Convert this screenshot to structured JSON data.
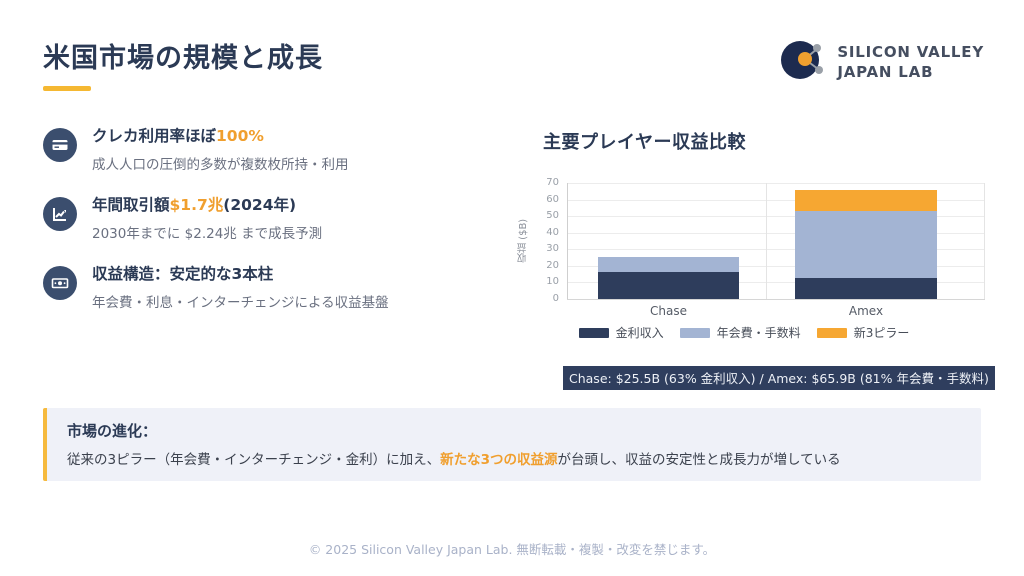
{
  "slide": {
    "title": "米国市場の規模と成長",
    "footer": "© 2025 Silicon Valley Japan Lab. 無断転載・複製・改変を禁じます。"
  },
  "logo": {
    "line1": "SILICON VALLEY",
    "line2": "JAPAN LAB"
  },
  "features": [
    {
      "icon": "credit-card-icon",
      "title_pre": "クレカ利用率ほぼ",
      "title_highlight": "100%",
      "title_post": "",
      "subtitle": "成人人口の圧倒的多数が複数枚所持・利用"
    },
    {
      "icon": "trend-chart-icon",
      "title_pre": "年間取引額",
      "title_highlight": "$1.7兆",
      "title_post": "(2024年)",
      "subtitle": "2030年までに $2.24兆 まで成長予測"
    },
    {
      "icon": "money-bill-icon",
      "title_pre": "収益構造：安定的な3本柱",
      "title_highlight": "",
      "title_post": "",
      "subtitle": "年会費・利息・インターチェンジによる収益基盤"
    }
  ],
  "chart": {
    "title": "主要プレイヤー収益比較",
    "caption": "Chase: $25.5B (63% 金利収入) / Amex: $65.9B (81% 年会費・手数料)"
  },
  "chart_data": {
    "type": "bar",
    "stacked": true,
    "title": "主要プレイヤー収益比較",
    "categories": [
      "Chase",
      "Amex"
    ],
    "series": [
      {
        "name": "金利収入",
        "color": "#2e3d5c",
        "values": [
          16.1,
          12.5
        ]
      },
      {
        "name": "年会費・手数料",
        "color": "#a3b4d3",
        "values": [
          9.4,
          40.9
        ]
      },
      {
        "name": "新3ピラー",
        "color": "#f6a732",
        "values": [
          0,
          12.5
        ]
      }
    ],
    "totals": {
      "Chase": "$25.5B",
      "Amex": "$65.9B"
    },
    "xlabel": "",
    "ylabel": "収益 ($B)",
    "ylim": [
      0,
      70
    ],
    "yticks": [
      0,
      10,
      20,
      30,
      40,
      50,
      60,
      70
    ],
    "grid": true,
    "legend_position": "bottom"
  },
  "callout": {
    "title": "市場の進化：",
    "body_pre": "従来の3ピラー（年会費・インターチェンジ・金利）に加え、",
    "body_highlight": "新たな3つの収益源",
    "body_post": "が台頭し、収益の安定性と成長力が増している"
  },
  "colors": {
    "navy_text": "#2b3a55",
    "accent_yellow": "#f5b832",
    "highlight_orange": "#f09f2e",
    "bar_dark": "#2e3d5c",
    "bar_light": "#a3b4d3",
    "bar_orange": "#f6a732",
    "callout_bg": "#eff1f8"
  }
}
